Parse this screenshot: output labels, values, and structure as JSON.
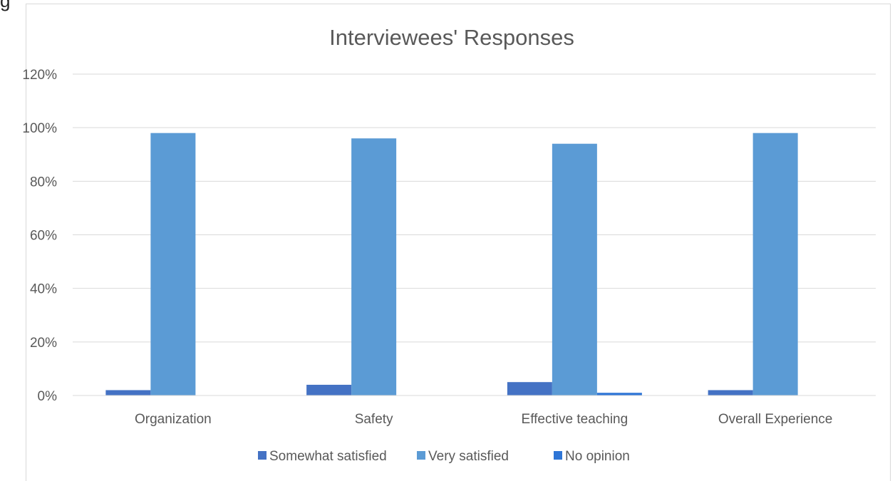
{
  "stray_char": "g",
  "chart_data": {
    "type": "bar",
    "title": "Interviewees' Responses",
    "xlabel": "",
    "ylabel": "",
    "categories": [
      "Organization",
      "Safety",
      "Effective teaching",
      "Overall Experience"
    ],
    "series": [
      {
        "name": "Somewhat satisfied",
        "color": "#4472c4",
        "values": [
          2,
          4,
          5,
          2
        ]
      },
      {
        "name": "Very satisfied",
        "color": "#5b9bd5",
        "values": [
          98,
          96,
          94,
          98
        ]
      },
      {
        "name": "No opinion",
        "color": "#2e75d6",
        "values": [
          0,
          0,
          1,
          0
        ]
      }
    ],
    "ylim": [
      0,
      120
    ],
    "yticks": [
      "0%",
      "20%",
      "40%",
      "60%",
      "80%",
      "100%",
      "120%"
    ],
    "grid": true,
    "legend": "bottom"
  }
}
